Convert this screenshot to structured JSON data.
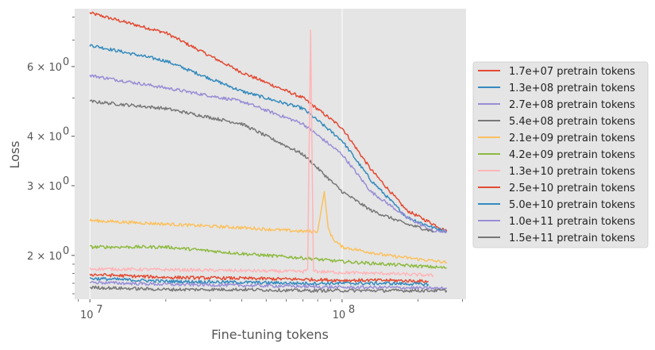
{
  "chart_data": {
    "type": "line",
    "title": "",
    "xlabel": "Fine-tuning tokens",
    "ylabel": "Loss",
    "xscale": "log",
    "yscale": "log",
    "xlim": [
      8700000,
      310000000
    ],
    "ylim": [
      1.55,
      8.4
    ],
    "grid": true,
    "legend_position": "right",
    "x_ticks": [
      {
        "value": 10000000,
        "base": "10",
        "exp": "7"
      },
      {
        "value": 100000000,
        "base": "10",
        "exp": "8"
      }
    ],
    "y_ticks": [
      {
        "value": 2,
        "mantissa": "2",
        "base": "10",
        "exp": "0"
      },
      {
        "value": 3,
        "mantissa": "3",
        "base": "10",
        "exp": "0"
      },
      {
        "value": 4,
        "mantissa": "4",
        "base": "10",
        "exp": "0"
      },
      {
        "value": 6,
        "mantissa": "6",
        "base": "10",
        "exp": "0"
      }
    ],
    "series": [
      {
        "name": "1.7e+07 pretrain tokens",
        "color": "#E24A33",
        "x": [
          10000000,
          20000000,
          40000000,
          70000000,
          100000000,
          130000000,
          180000000,
          230000000,
          260000000
        ],
        "y": [
          8.2,
          7.3,
          5.8,
          5.0,
          4.2,
          3.3,
          2.6,
          2.4,
          2.3
        ]
      },
      {
        "name": "1.3e+08 pretrain tokens",
        "color": "#348ABD",
        "x": [
          10000000,
          20000000,
          40000000,
          70000000,
          100000000,
          130000000,
          180000000,
          230000000,
          260000000
        ],
        "y": [
          6.8,
          6.2,
          5.2,
          4.7,
          3.9,
          3.1,
          2.5,
          2.35,
          2.3
        ]
      },
      {
        "name": "2.7e+08 pretrain tokens",
        "color": "#988ED5",
        "x": [
          10000000,
          20000000,
          40000000,
          70000000,
          100000000,
          130000000,
          180000000,
          230000000,
          260000000
        ],
        "y": [
          5.7,
          5.3,
          4.9,
          4.3,
          3.6,
          2.9,
          2.5,
          2.3,
          2.3
        ]
      },
      {
        "name": "5.4e+08 pretrain tokens",
        "color": "#777777",
        "x": [
          10000000,
          20000000,
          40000000,
          70000000,
          100000000,
          130000000,
          180000000,
          230000000
        ],
        "y": [
          4.9,
          4.7,
          4.3,
          3.6,
          2.9,
          2.6,
          2.4,
          2.3
        ]
      },
      {
        "name": "2.1e+09 pretrain tokens",
        "color": "#FBC15E",
        "x": [
          10000000,
          20000000,
          40000000,
          70000000,
          80000000,
          85000000,
          88000000,
          92000000,
          100000000,
          150000000,
          260000000
        ],
        "y": [
          2.45,
          2.4,
          2.35,
          2.3,
          2.3,
          2.9,
          2.35,
          2.2,
          2.1,
          2.0,
          1.92
        ]
      },
      {
        "name": "4.2e+09 pretrain tokens",
        "color": "#8EBA42",
        "x": [
          10000000,
          20000000,
          40000000,
          70000000,
          100000000,
          150000000,
          260000000
        ],
        "y": [
          2.1,
          2.1,
          2.02,
          1.97,
          1.93,
          1.9,
          1.86
        ]
      },
      {
        "name": "1.3e+10 pretrain tokens",
        "color": "#FFB5B8",
        "x": [
          10000000,
          20000000,
          40000000,
          70000000,
          73000000,
          75000000,
          77000000,
          80000000,
          100000000,
          150000000,
          230000000
        ],
        "y": [
          1.85,
          1.84,
          1.83,
          1.82,
          1.84,
          7.4,
          1.84,
          1.82,
          1.81,
          1.8,
          1.78
        ]
      },
      {
        "name": "2.5e+10 pretrain tokens",
        "color": "#E24A33",
        "x": [
          10000000,
          20000000,
          40000000,
          70000000,
          100000000,
          150000000,
          220000000
        ],
        "y": [
          1.79,
          1.76,
          1.75,
          1.74,
          1.73,
          1.73,
          1.72
        ]
      },
      {
        "name": "5.0e+10 pretrain tokens",
        "color": "#348ABD",
        "x": [
          10000000,
          20000000,
          40000000,
          70000000,
          100000000,
          150000000,
          220000000
        ],
        "y": [
          1.75,
          1.72,
          1.71,
          1.7,
          1.7,
          1.7,
          1.69
        ]
      },
      {
        "name": "1.0e+11 pretrain tokens",
        "color": "#988ED5",
        "x": [
          10000000,
          20000000,
          40000000,
          70000000,
          100000000,
          150000000,
          260000000
        ],
        "y": [
          1.71,
          1.69,
          1.68,
          1.67,
          1.66,
          1.66,
          1.65
        ]
      },
      {
        "name": "1.5e+11 pretrain tokens",
        "color": "#777777",
        "x": [
          10000000,
          20000000,
          40000000,
          70000000,
          100000000,
          150000000,
          260000000
        ],
        "y": [
          1.66,
          1.64,
          1.64,
          1.63,
          1.63,
          1.63,
          1.63
        ]
      }
    ]
  }
}
